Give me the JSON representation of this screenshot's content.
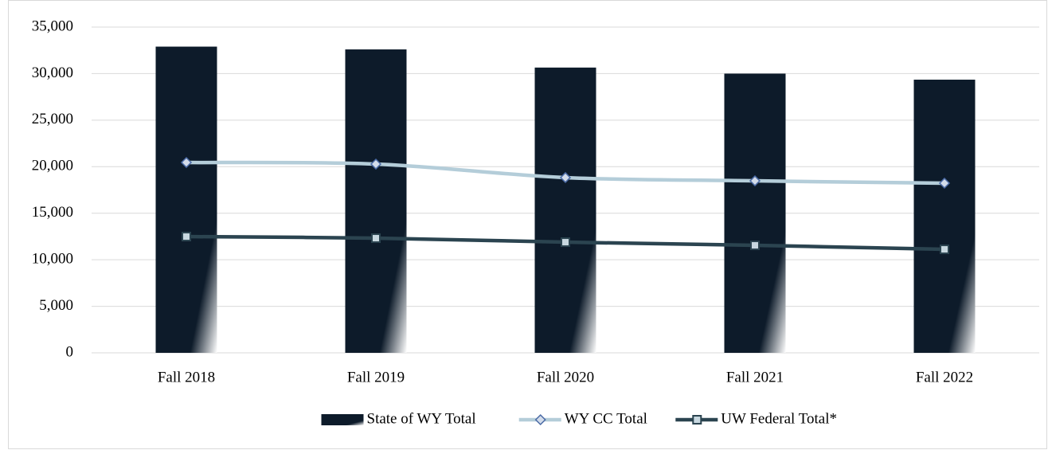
{
  "chart_data": {
    "type": "bar-line",
    "categories": [
      "Fall 2018",
      "Fall 2019",
      "Fall 2020",
      "Fall 2021",
      "Fall 2022"
    ],
    "series": [
      {
        "name": "State of WY Total",
        "type": "bar",
        "color": "#0d1b2a",
        "values": [
          32900,
          32600,
          30650,
          30000,
          29350
        ]
      },
      {
        "name": "WY CC Total",
        "type": "line",
        "color": "#b4cdd9",
        "marker": "diamond",
        "values": [
          20450,
          20280,
          18830,
          18480,
          18230
        ]
      },
      {
        "name": "UW Federal Total*",
        "type": "line",
        "color": "#2b4450",
        "marker": "square",
        "values": [
          12490,
          12320,
          11890,
          11550,
          11120
        ]
      }
    ],
    "ylim": [
      0,
      35000
    ],
    "yticks": [
      0,
      {
        "value": 5000,
        "label": "5,000"
      },
      {
        "value": 10000,
        "label": "10,000"
      },
      {
        "value": 15000,
        "label": "15,000"
      },
      {
        "value": 20000,
        "label": "20,000"
      },
      {
        "value": 25000,
        "label": "25,000"
      },
      {
        "value": 30000,
        "label": "30,000"
      },
      {
        "value": 35000,
        "label": "35,000"
      }
    ],
    "grid": true,
    "legend": "bottom"
  }
}
